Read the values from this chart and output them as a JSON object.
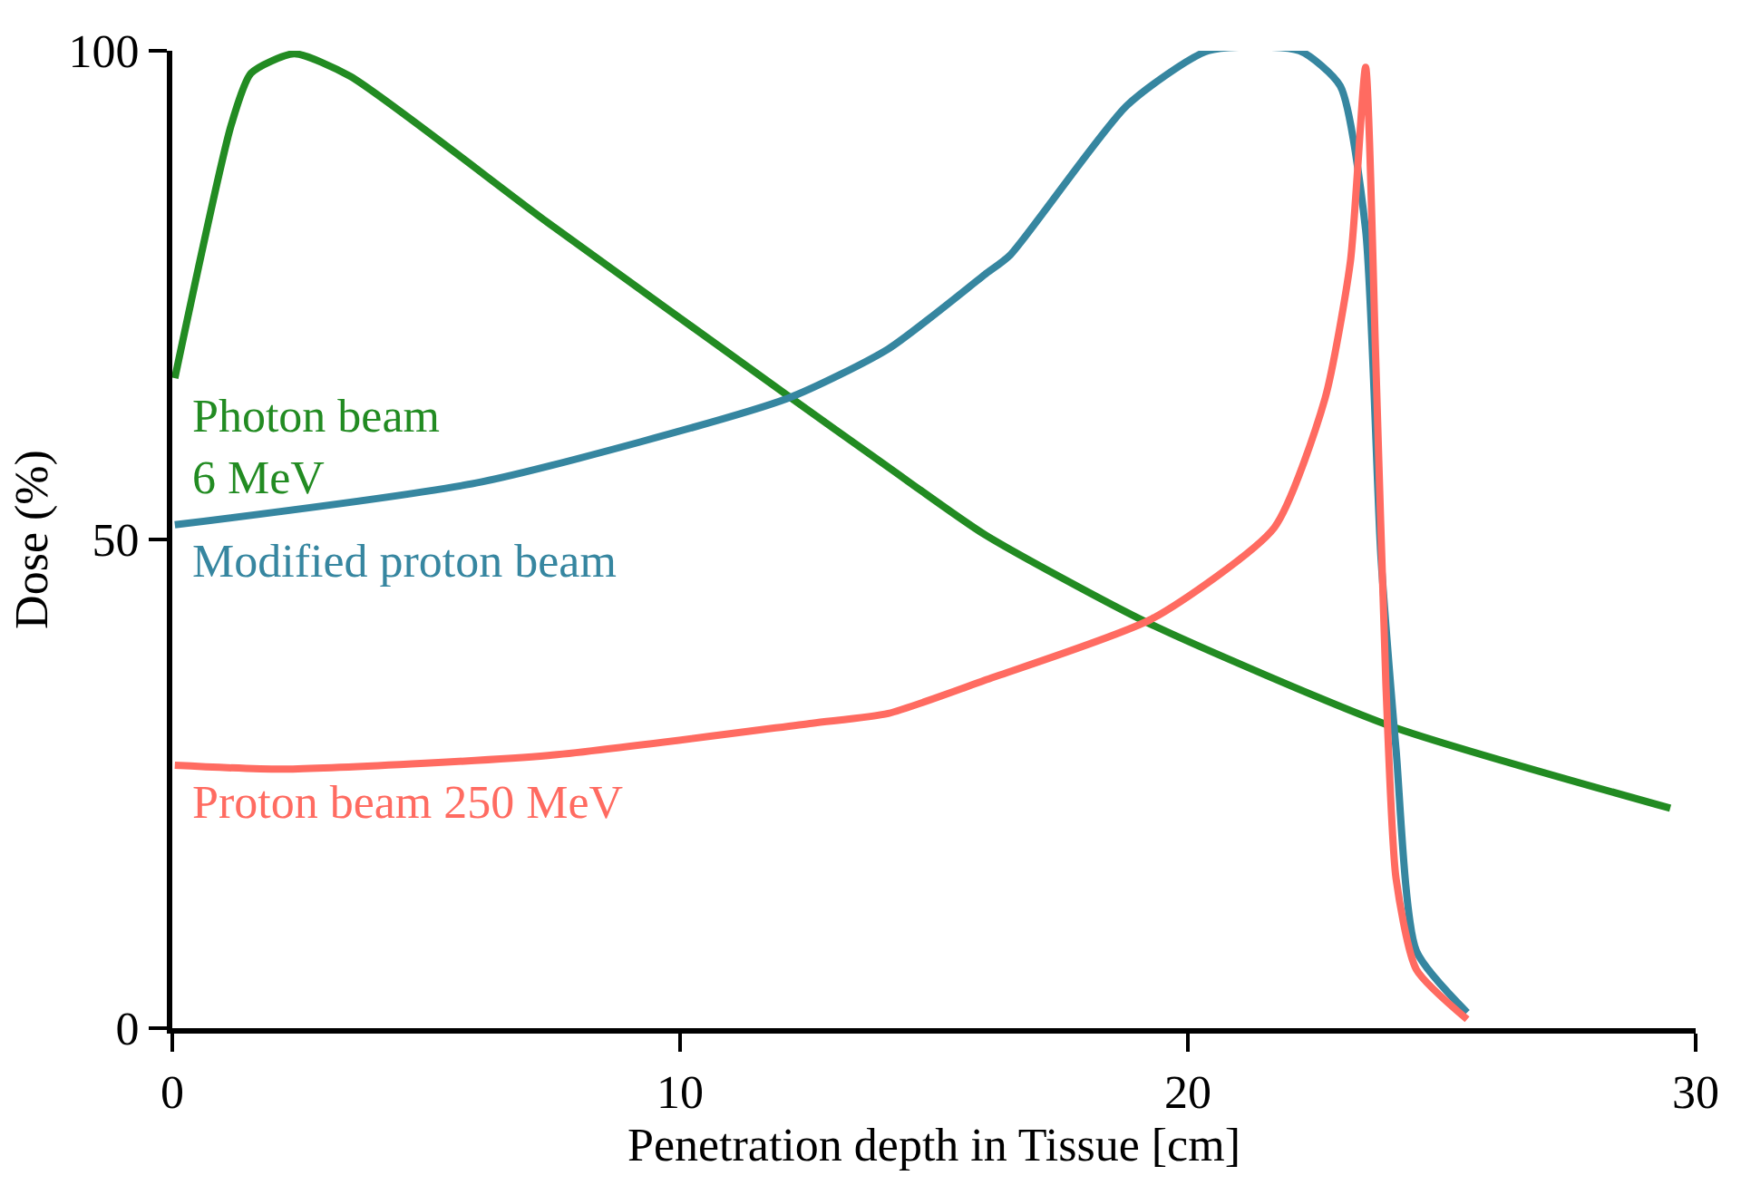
{
  "chart_data": {
    "type": "line",
    "xlabel": "Penetration depth in Tissue [cm]",
    "ylabel": "Dose (%)",
    "xlim": [
      0,
      30
    ],
    "xticks": [
      0,
      10,
      20,
      30
    ],
    "ylim": [
      0,
      100
    ],
    "yticks": [
      0,
      50,
      100
    ],
    "legend": false,
    "marker": "none",
    "line_style": "solid",
    "series": [
      {
        "name": "Photon beam\n6 MeV",
        "color": "#228b22",
        "x": [
          0.05,
          1.16,
          1.55,
          2.4,
          3.5,
          7.4,
          12.1,
          14.1,
          16.0,
          19.2,
          24.0,
          29.5
        ],
        "values": [
          66.5,
          92.4,
          97.7,
          99.7,
          97.4,
          82.4,
          64.8,
          57.4,
          50.5,
          41.5,
          30.9,
          22.5
        ]
      },
      {
        "name": "Modified proton beam",
        "color": "#3686a0",
        "x": [
          0.05,
          6.1,
          12.1,
          14.1,
          16.0,
          16.5,
          18.8,
          20.4,
          22.2,
          23.0,
          23.5,
          23.8,
          24.1,
          24.5,
          25.5
        ],
        "values": [
          51.5,
          55.9,
          64.4,
          69.5,
          77.1,
          79.1,
          94.4,
          100,
          100,
          96.4,
          81.7,
          48.4,
          28.5,
          7.9,
          1.6
        ]
      },
      {
        "name": "Proton beam 250 MeV",
        "color": "#ff6b61",
        "x": [
          0.05,
          2.2,
          7.4,
          12.6,
          14.1,
          16.0,
          19.3,
          21.7,
          22.7,
          23.2,
          23.5,
          23.7,
          23.9,
          24.1,
          24.5,
          25.5
        ],
        "values": [
          26.9,
          26.5,
          27.9,
          31.2,
          32.2,
          35.6,
          41.9,
          51.2,
          64.4,
          78.4,
          98.3,
          68.4,
          35.2,
          15.3,
          6.0,
          0.9
        ]
      }
    ]
  }
}
